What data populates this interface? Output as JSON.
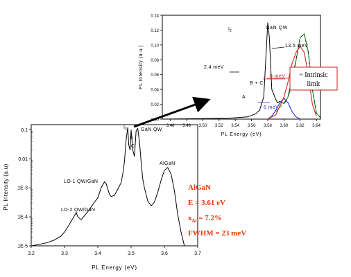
{
  "chart_data": [
    {
      "type": "line",
      "name": "inset",
      "xlabel": "PL Energy (eV)",
      "ylabel": "PL Intensity (a.u.)",
      "xlim": [
        3.45,
        3.645
      ],
      "ylim": [
        0,
        0.14
      ],
      "xticks": [
        3.46,
        3.48,
        3.5,
        3.52,
        3.54,
        3.56,
        3.58,
        3.6,
        3.62,
        3.64
      ],
      "xtick_labels": [
        "3.46",
        "3.48",
        "3.50",
        "3.52",
        "3.54",
        "3.56",
        "3.58",
        "3.60",
        "3.62",
        "3.64"
      ],
      "yticks": [
        0,
        0.02,
        0.04,
        0.06,
        0.08,
        0.1,
        0.12,
        0.14
      ],
      "ytick_labels": [
        "0.00",
        "0.02",
        "0.04",
        "0.06",
        "0.08",
        "0.10",
        "0.12",
        "0.14"
      ],
      "series": [
        {
          "color": "#000000",
          "dash": "",
          "x": [
            3.45,
            3.53,
            3.555,
            3.565,
            3.57,
            3.575,
            3.578,
            3.58,
            3.582,
            3.585,
            3.59,
            3.592,
            3.595,
            3.598,
            3.6,
            3.602,
            3.605,
            3.608,
            3.61,
            3.615,
            3.62,
            3.625,
            3.63,
            3.635,
            3.64,
            3.645
          ],
          "y": [
            0.0,
            0.001,
            0.003,
            0.007,
            0.012,
            0.03,
            0.09,
            0.13,
            0.11,
            0.04,
            0.026,
            0.022,
            0.024,
            0.022,
            0.021,
            0.024,
            0.03,
            0.045,
            0.055,
            0.08,
            0.11,
            0.115,
            0.09,
            0.04,
            0.008,
            0.002
          ]
        },
        {
          "color": "#20b020",
          "dash": "5,3",
          "x": [
            3.59,
            3.6,
            3.605,
            3.61,
            3.615,
            3.62,
            3.625,
            3.63,
            3.635,
            3.64,
            3.645
          ],
          "y": [
            0.01,
            0.022,
            0.03,
            0.045,
            0.08,
            0.11,
            0.115,
            0.09,
            0.04,
            0.008,
            0.002
          ]
        },
        {
          "color": "#2a2ad0",
          "dash": "",
          "x": [
            3.58,
            3.585,
            3.59,
            3.595,
            3.6,
            3.605,
            3.61,
            3.615,
            3.62
          ],
          "y": [
            0.0,
            0.004,
            0.012,
            0.022,
            0.028,
            0.022,
            0.01,
            0.003,
            0.0
          ]
        },
        {
          "color": "#d02020",
          "dash": "",
          "x": [
            3.58,
            3.59,
            3.6,
            3.605,
            3.61,
            3.615,
            3.62,
            3.625,
            3.63,
            3.635,
            3.64
          ],
          "y": [
            0.0,
            0.006,
            0.03,
            0.05,
            0.075,
            0.09,
            0.098,
            0.09,
            0.06,
            0.02,
            0.004
          ]
        }
      ],
      "annotations": {
        "i2": "I",
        "i2_sub": "2",
        "gan_qw": "GaN QW",
        "fwhm_qw": "13.5 meV",
        "fwhm_i2": "2.4 meV",
        "a": "A",
        "b_c": "B + C",
        "red_width": "8 meV",
        "blue_width": "~ 6 meV"
      }
    },
    {
      "type": "line",
      "name": "main",
      "scale_y": "log",
      "xlabel": "PL Energy (eV)",
      "ylabel": "PL Intensity (a.u)",
      "xlim": [
        3.2,
        3.7
      ],
      "ylim": [
        1e-05,
        0.15
      ],
      "xticks": [
        3.2,
        3.3,
        3.4,
        3.5,
        3.6,
        3.7
      ],
      "xtick_labels": [
        "3.2",
        "3.3",
        "3.4",
        "3.5",
        "3.6",
        "3.7"
      ],
      "yticks": [
        1e-05,
        0.0001,
        0.001,
        0.01,
        0.1
      ],
      "ytick_labels": [
        "1E-5",
        "1E-4",
        "1E-3",
        "0.01",
        "0.1"
      ],
      "series": [
        {
          "color": "#000000",
          "x": [
            3.2,
            3.22,
            3.25,
            3.27,
            3.29,
            3.3,
            3.31,
            3.32,
            3.33,
            3.335,
            3.34,
            3.35,
            3.36,
            3.37,
            3.38,
            3.39,
            3.4,
            3.41,
            3.42,
            3.425,
            3.43,
            3.435,
            3.44,
            3.45,
            3.46,
            3.47,
            3.475,
            3.48,
            3.485,
            3.49,
            3.493,
            3.497,
            3.5,
            3.505,
            3.51,
            3.515,
            3.52,
            3.525,
            3.53,
            3.535,
            3.54,
            3.55,
            3.56,
            3.57,
            3.58,
            3.59,
            3.6,
            3.61,
            3.62,
            3.63,
            3.64,
            3.65,
            3.66,
            3.67
          ],
          "y": [
            1e-05,
            1.1e-05,
            1.3e-05,
            1.6e-05,
            2.2e-05,
            3e-05,
            4.5e-05,
            7e-05,
            0.00011,
            0.00014,
            0.0001,
            8e-05,
            0.00011,
            0.00015,
            0.00022,
            0.00032,
            0.00045,
            0.001,
            0.0016,
            0.0014,
            0.0009,
            0.0006,
            0.0005,
            0.00055,
            0.0009,
            0.0015,
            0.003,
            0.008,
            0.045,
            0.12,
            0.03,
            0.02,
            0.1,
            0.02,
            0.012,
            0.09,
            0.11,
            0.04,
            0.008,
            0.002,
            0.001,
            0.00035,
            0.00024,
            0.00032,
            0.0007,
            0.0018,
            0.004,
            0.005,
            0.003,
            0.0008,
            0.00012,
            3e-05,
            1e-05,
            1e-05
          ]
        }
      ],
      "annotations": {
        "i2": "I",
        "i2_sub": "2",
        "b": "B",
        "c": "C",
        "gan_qw": "GaN QW",
        "algan": "AlGaN",
        "lo1": "LO-1 QW/GaN",
        "lo2": "LO-2 QW/GaN"
      }
    }
  ],
  "notes": {
    "line1": "AlGaN",
    "line2": "E = 3.61 eV",
    "line3_prefix": "x",
    "line3_sub": "Al",
    "line3_suffix": " = 7.2%",
    "line4": "FWHM = 23 meV"
  },
  "callout": {
    "line1": "~ Intrinsic",
    "line2": "limit"
  },
  "colors": {
    "accent": "#e8340c",
    "green": "#20b020",
    "blue": "#2a2ad0",
    "red": "#d02020"
  }
}
